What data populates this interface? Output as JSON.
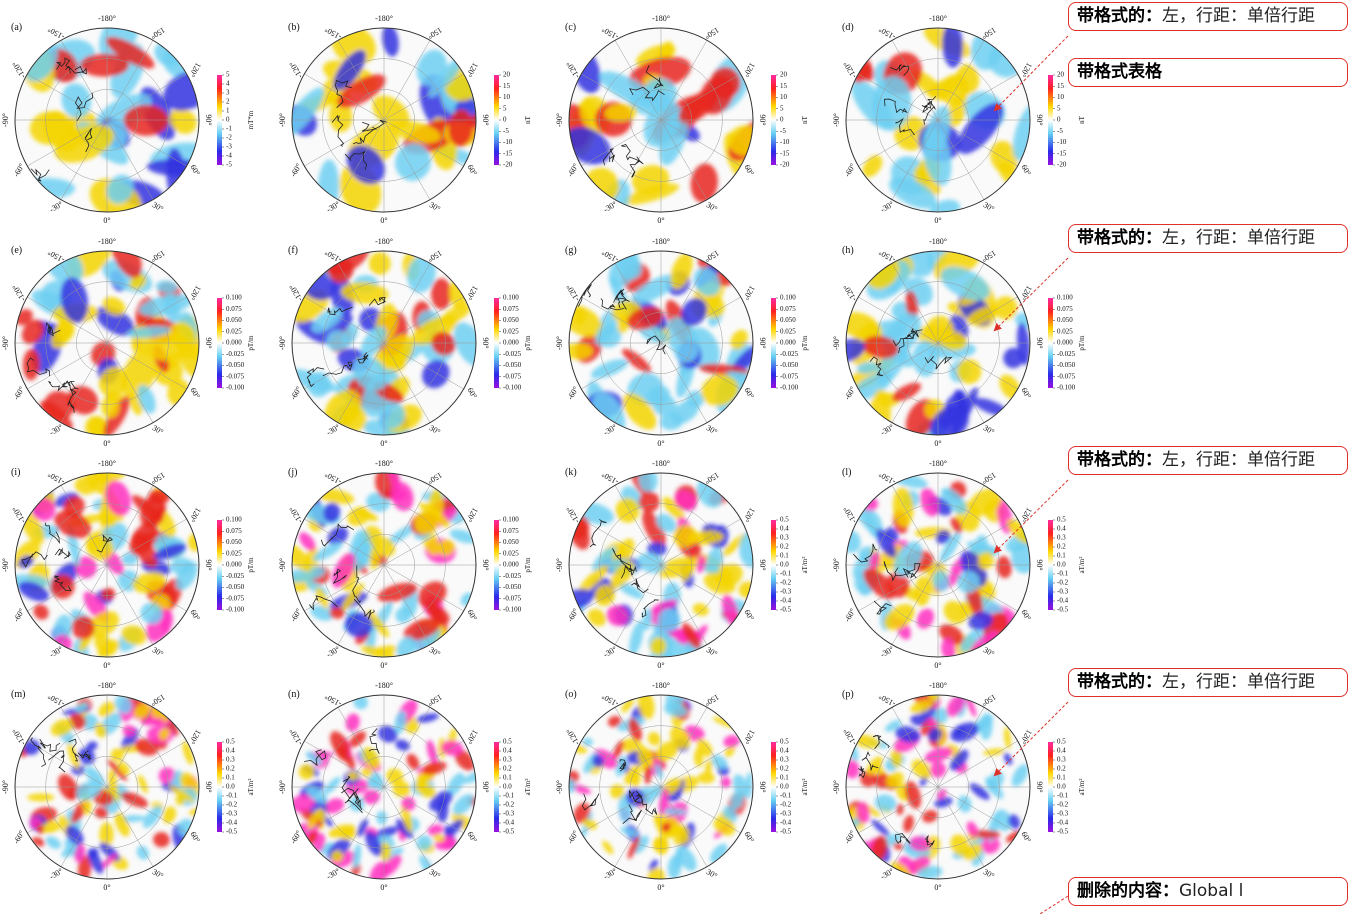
{
  "longitude_labels": [
    "-180°",
    "150°",
    "120°",
    "90°",
    "60°",
    "30°",
    "0°",
    "-30°",
    "-60°",
    "-90°",
    "-120°",
    "-150°"
  ],
  "panels": [
    {
      "label": "(a)",
      "colorbar_ticks": [
        "5",
        "4",
        "3",
        "2",
        "1",
        "0",
        "-1",
        "-2",
        "-3",
        "-4",
        "-5"
      ],
      "colorbar_unit": "mT*m"
    },
    {
      "label": "(b)",
      "colorbar_ticks": [
        "20",
        "15",
        "10",
        "5",
        "0",
        "-5",
        "-10",
        "-15",
        "-20"
      ],
      "colorbar_unit": "nT"
    },
    {
      "label": "(c)",
      "colorbar_ticks": [
        "20",
        "15",
        "10",
        "5",
        "0",
        "-5",
        "-10",
        "-15",
        "-20"
      ],
      "colorbar_unit": "nT"
    },
    {
      "label": "(d)",
      "colorbar_ticks": [
        "20",
        "15",
        "10",
        "5",
        "0",
        "-5",
        "-10",
        "-15",
        "-20"
      ],
      "colorbar_unit": "nT"
    },
    {
      "label": "(e)",
      "colorbar_ticks": [
        "0.100",
        "0.075",
        "0.050",
        "0.025",
        "0.000",
        "-0.025",
        "-0.050",
        "-0.075",
        "-0.100"
      ],
      "colorbar_unit": "pT/m"
    },
    {
      "label": "(f)",
      "colorbar_ticks": [
        "0.100",
        "0.075",
        "0.050",
        "0.025",
        "0.000",
        "-0.025",
        "-0.050",
        "-0.075",
        "-0.100"
      ],
      "colorbar_unit": "pT/m"
    },
    {
      "label": "(g)",
      "colorbar_ticks": [
        "0.100",
        "0.075",
        "0.050",
        "0.025",
        "0.000",
        "-0.025",
        "-0.050",
        "-0.075",
        "-0.100"
      ],
      "colorbar_unit": "pT/m"
    },
    {
      "label": "(h)",
      "colorbar_ticks": [
        "0.100",
        "0.075",
        "0.050",
        "0.025",
        "0.000",
        "-0.025",
        "-0.050",
        "-0.075",
        "-0.100"
      ],
      "colorbar_unit": "pT/m"
    },
    {
      "label": "(i)",
      "colorbar_ticks": [
        "0.100",
        "0.075",
        "0.050",
        "0.025",
        "0.000",
        "-0.025",
        "-0.050",
        "-0.075",
        "-0.100"
      ],
      "colorbar_unit": "pT/m"
    },
    {
      "label": "(j)",
      "colorbar_ticks": [
        "0.100",
        "0.075",
        "0.050",
        "0.025",
        "0.000",
        "-0.025",
        "-0.050",
        "-0.075",
        "-0.100"
      ],
      "colorbar_unit": "pT/m"
    },
    {
      "label": "(k)",
      "colorbar_ticks": [
        "0.5",
        "0.4",
        "0.3",
        "0.2",
        "0.1",
        "0.0",
        "-0.1",
        "-0.2",
        "-0.3",
        "-0.4",
        "-0.5"
      ],
      "colorbar_unit": "aT/m²"
    },
    {
      "label": "(l)",
      "colorbar_ticks": [
        "0.5",
        "0.4",
        "0.3",
        "0.2",
        "0.1",
        "0.0",
        "-0.1",
        "-0.2",
        "-0.3",
        "-0.4",
        "-0.5"
      ],
      "colorbar_unit": "aT/m²"
    },
    {
      "label": "(m)",
      "colorbar_ticks": [
        "0.5",
        "0.4",
        "0.3",
        "0.2",
        "0.1",
        "0.0",
        "-0.1",
        "-0.2",
        "-0.3",
        "-0.4",
        "-0.5"
      ],
      "colorbar_unit": "aT/m²"
    },
    {
      "label": "(n)",
      "colorbar_ticks": [
        "0.5",
        "0.4",
        "0.3",
        "0.2",
        "0.1",
        "0.0",
        "-0.1",
        "-0.2",
        "-0.3",
        "-0.4",
        "-0.5"
      ],
      "colorbar_unit": "aT/m²"
    },
    {
      "label": "(o)",
      "colorbar_ticks": [
        "0.5",
        "0.4",
        "0.3",
        "0.2",
        "0.1",
        "0.0",
        "-0.1",
        "-0.2",
        "-0.3",
        "-0.4",
        "-0.5"
      ],
      "colorbar_unit": "aT/m²"
    },
    {
      "label": "(p)",
      "colorbar_ticks": [
        "0.5",
        "0.4",
        "0.3",
        "0.2",
        "0.1",
        "0.0",
        "-0.1",
        "-0.2",
        "-0.3",
        "-0.4",
        "-0.5"
      ],
      "colorbar_unit": "aT/m²"
    }
  ],
  "comments": [
    {
      "label": "带格式的：",
      "text": "左，行距：单倍行距"
    },
    {
      "label": "带格式表格"
    },
    {
      "label": "带格式的：",
      "text": "左，行距：单倍行距"
    },
    {
      "label": "带格式的：",
      "text": "左，行距：单倍行距"
    },
    {
      "label": "带格式的：",
      "text": "左，行距：单倍行距"
    },
    {
      "label": "删除的内容：",
      "text": "Global l"
    }
  ]
}
